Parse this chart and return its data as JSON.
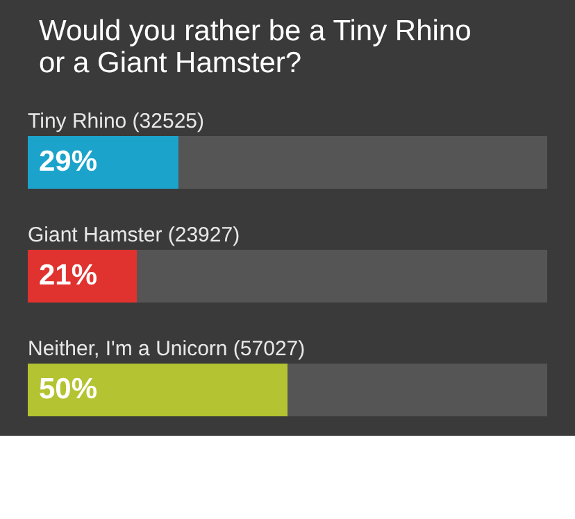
{
  "chart_data": {
    "type": "bar",
    "orientation": "horizontal",
    "title": "Would you rather be a Tiny Rhino or a Giant Hamster?",
    "categories": [
      "Tiny Rhino (32525)",
      "Giant Hamster (23927)",
      "Neither, I'm a Unicorn (57027)"
    ],
    "values": [
      29,
      21,
      50
    ],
    "colors": [
      "#1ba3cb",
      "#e0322f",
      "#b4c331"
    ],
    "value_labels": [
      "29%",
      "21%",
      "50%"
    ],
    "xlim": [
      0,
      100
    ]
  }
}
